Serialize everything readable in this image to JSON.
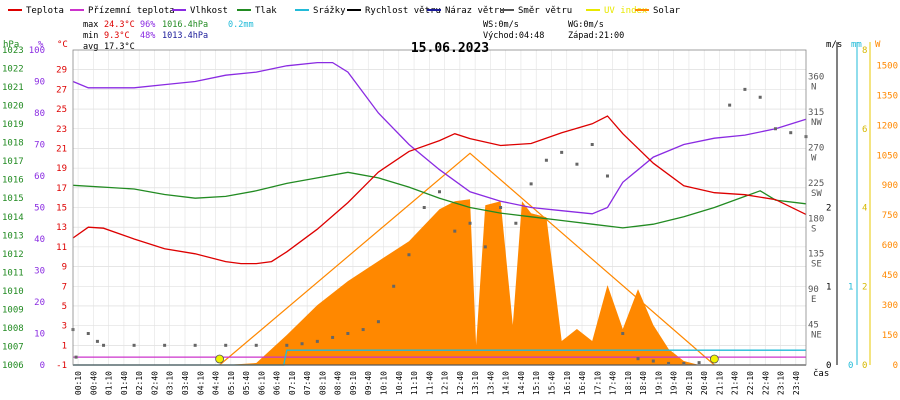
{
  "chart_data": {
    "type": "line",
    "title": "15.06.2023",
    "legend": [
      {
        "label": "Teplota",
        "color": "#dd0000"
      },
      {
        "label": "Přízemní teplota",
        "color": "#cc33cc"
      },
      {
        "label": "Vlhkost",
        "color": "#8a2be2"
      },
      {
        "label": "Tlak",
        "color": "#228b22"
      },
      {
        "label": "Srážky",
        "color": "#22bbd8"
      },
      {
        "label": "Rychlost větru",
        "color": "#000000"
      },
      {
        "label": "Náraz větru",
        "color": "#1a1a99"
      },
      {
        "label": "Směr větru",
        "color": "#555555"
      },
      {
        "label": "UV index",
        "color": "#e8e800"
      },
      {
        "label": "Solar",
        "color": "#ff8800"
      }
    ],
    "stats": {
      "max": {
        "label": "max",
        "temp": "24.3°C",
        "hum": "96%",
        "press": "1016.4hPa",
        "rain": "0.2mm"
      },
      "min": {
        "label": "min",
        "temp": "9.3°C",
        "hum": "48%",
        "press": "1013.4hPa"
      },
      "avg": {
        "label": "avg",
        "temp": "17.3°C"
      },
      "wind": {
        "ws": "WS:0m/s",
        "wg": "WG:0m/s",
        "sunrise": "Východ:04:48",
        "sunset": "Západ:21:00"
      }
    },
    "axes": {
      "hpa_label": "hPa",
      "pct_label": "%",
      "c_label": "°C",
      "ms_label": "m/s",
      "mm_label": "mm",
      "w_label": "W",
      "x_label": "čas",
      "hpa_ticks": [
        "1006",
        "1007",
        "1008",
        "1009",
        "1010",
        "1011",
        "1012",
        "1013",
        "1014",
        "1015",
        "1016",
        "1017",
        "1018",
        "1019",
        "1020",
        "1021",
        "1022",
        "1023"
      ],
      "pct_ticks": [
        "0",
        "10",
        "20",
        "30",
        "40",
        "50",
        "60",
        "70",
        "80",
        "90",
        "100"
      ],
      "c_ticks": [
        "-1",
        "1",
        "3",
        "5",
        "7",
        "9",
        "11",
        "13",
        "15",
        "17",
        "19",
        "21",
        "23",
        "25",
        "27",
        "29"
      ],
      "deg_ticks": [
        {
          "v": "360",
          "d": "N"
        },
        {
          "v": "315",
          "d": "NW"
        },
        {
          "v": "270",
          "d": "W"
        },
        {
          "v": "225",
          "d": "SW"
        },
        {
          "v": "180",
          "d": "S"
        },
        {
          "v": "135",
          "d": "SE"
        },
        {
          "v": "90",
          "d": "E"
        },
        {
          "v": "45",
          "d": "NE"
        }
      ],
      "ms_ticks": [
        {
          "v": "0",
          "y": 0
        },
        {
          "v": "1",
          "y": 1
        },
        {
          "v": "2",
          "y": 2
        }
      ],
      "mm_ticks": [
        {
          "v": "0",
          "y": 0
        },
        {
          "v": "1",
          "y": 1
        }
      ],
      "uv_ticks": [
        "0",
        "2",
        "4",
        "6",
        "8"
      ],
      "w_ticks": [
        "0",
        "150",
        "300",
        "450",
        "600",
        "750",
        "900",
        "1050",
        "1200",
        "1350",
        "1500"
      ],
      "x_ticks": [
        "00:10",
        "00:40",
        "01:10",
        "01:40",
        "02:10",
        "02:40",
        "03:10",
        "03:40",
        "04:10",
        "04:40",
        "05:10",
        "05:40",
        "06:10",
        "06:40",
        "07:10",
        "07:40",
        "08:10",
        "08:40",
        "09:10",
        "09:40",
        "10:10",
        "10:40",
        "11:10",
        "11:40",
        "12:10",
        "12:40",
        "13:10",
        "13:40",
        "14:10",
        "14:40",
        "15:10",
        "15:40",
        "16:10",
        "16:40",
        "17:10",
        "17:40",
        "18:10",
        "18:40",
        "19:10",
        "19:40",
        "20:10",
        "20:40",
        "21:10",
        "21:40",
        "22:10",
        "22:40",
        "23:10",
        "23:40"
      ]
    },
    "series": {
      "temperature_c": [
        [
          0,
          11.9
        ],
        [
          0.5,
          13.0
        ],
        [
          1,
          12.9
        ],
        [
          2,
          11.8
        ],
        [
          3,
          10.8
        ],
        [
          4,
          10.3
        ],
        [
          5,
          9.5
        ],
        [
          5.5,
          9.3
        ],
        [
          6,
          9.3
        ],
        [
          6.5,
          9.5
        ],
        [
          7,
          10.5
        ],
        [
          8,
          12.8
        ],
        [
          9,
          15.5
        ],
        [
          10,
          18.6
        ],
        [
          11,
          20.7
        ],
        [
          12,
          21.8
        ],
        [
          12.5,
          22.5
        ],
        [
          13,
          22.0
        ],
        [
          14,
          21.3
        ],
        [
          15,
          21.5
        ],
        [
          16,
          22.6
        ],
        [
          17,
          23.5
        ],
        [
          17.5,
          24.3
        ],
        [
          18,
          22.5
        ],
        [
          19,
          19.5
        ],
        [
          20,
          17.2
        ],
        [
          21,
          16.5
        ],
        [
          22,
          16.3
        ],
        [
          23,
          15.8
        ],
        [
          24,
          14.3
        ]
      ],
      "humidity_pct": [
        [
          0,
          90
        ],
        [
          0.5,
          88
        ],
        [
          2,
          88
        ],
        [
          3,
          89
        ],
        [
          4,
          90
        ],
        [
          5,
          92
        ],
        [
          6,
          93
        ],
        [
          7,
          95
        ],
        [
          8,
          96
        ],
        [
          8.5,
          96
        ],
        [
          9,
          93
        ],
        [
          10,
          80
        ],
        [
          11,
          70
        ],
        [
          12,
          62
        ],
        [
          13,
          55
        ],
        [
          14,
          52
        ],
        [
          15,
          50
        ],
        [
          16,
          49
        ],
        [
          17,
          48
        ],
        [
          17.5,
          50
        ],
        [
          18,
          58
        ],
        [
          19,
          66
        ],
        [
          20,
          70
        ],
        [
          21,
          72
        ],
        [
          22,
          73
        ],
        [
          23,
          75
        ],
        [
          24,
          78
        ]
      ],
      "pressure_hpa": [
        [
          0,
          1015.7
        ],
        [
          1,
          1015.6
        ],
        [
          2,
          1015.5
        ],
        [
          3,
          1015.2
        ],
        [
          4,
          1015.0
        ],
        [
          5,
          1015.1
        ],
        [
          6,
          1015.4
        ],
        [
          7,
          1015.8
        ],
        [
          8,
          1016.1
        ],
        [
          9,
          1016.4
        ],
        [
          10,
          1016.1
        ],
        [
          11,
          1015.6
        ],
        [
          12,
          1015.0
        ],
        [
          13,
          1014.5
        ],
        [
          14,
          1014.2
        ],
        [
          15,
          1014.0
        ],
        [
          16,
          1013.8
        ],
        [
          17,
          1013.6
        ],
        [
          18,
          1013.4
        ],
        [
          19,
          1013.6
        ],
        [
          20,
          1014.0
        ],
        [
          21,
          1014.5
        ],
        [
          22,
          1015.1
        ],
        [
          22.5,
          1015.4
        ],
        [
          23,
          1014.9
        ],
        [
          24,
          1014.7
        ]
      ],
      "ground_temp_c": [
        [
          0,
          -0.2
        ],
        [
          24,
          -0.2
        ]
      ],
      "rain_mm": [
        [
          0,
          0
        ],
        [
          6.9,
          0
        ],
        [
          7.0,
          0.2
        ],
        [
          24,
          0.2
        ]
      ],
      "wind_speed_ms": [
        [
          0,
          0
        ],
        [
          24,
          0
        ]
      ],
      "solar_w": [
        [
          5,
          0
        ],
        [
          6,
          10
        ],
        [
          7,
          150
        ],
        [
          8,
          300
        ],
        [
          9,
          420
        ],
        [
          10,
          520
        ],
        [
          11,
          620
        ],
        [
          11.5,
          700
        ],
        [
          12,
          780
        ],
        [
          12.5,
          820
        ],
        [
          13,
          830
        ],
        [
          13.2,
          100
        ],
        [
          13.5,
          800
        ],
        [
          14,
          820
        ],
        [
          14.4,
          200
        ],
        [
          14.7,
          820
        ],
        [
          15,
          760
        ],
        [
          15.5,
          740
        ],
        [
          16,
          120
        ],
        [
          16.5,
          180
        ],
        [
          17,
          120
        ],
        [
          17.5,
          400
        ],
        [
          18,
          180
        ],
        [
          18.5,
          380
        ],
        [
          19,
          200
        ],
        [
          19.5,
          80
        ],
        [
          20,
          20
        ],
        [
          20.5,
          0
        ]
      ],
      "solar_theoretical_w": [
        [
          4.8,
          0
        ],
        [
          13,
          1060
        ],
        [
          21,
          0
        ]
      ],
      "wind_dir_deg": [
        [
          0,
          45
        ],
        [
          0.1,
          10
        ],
        [
          0.5,
          40
        ],
        [
          0.8,
          30
        ],
        [
          1,
          25
        ],
        [
          2,
          25
        ],
        [
          3,
          25
        ],
        [
          4,
          25
        ],
        [
          5,
          25
        ],
        [
          6,
          25
        ],
        [
          7,
          25
        ],
        [
          7.5,
          27
        ],
        [
          8,
          30
        ],
        [
          8.5,
          35
        ],
        [
          9,
          40
        ],
        [
          9.5,
          45
        ],
        [
          10,
          55
        ],
        [
          10.5,
          100
        ],
        [
          11,
          140
        ],
        [
          11.5,
          200
        ],
        [
          12,
          220
        ],
        [
          12.5,
          170
        ],
        [
          13,
          180
        ],
        [
          13.5,
          150
        ],
        [
          14,
          200
        ],
        [
          14.5,
          180
        ],
        [
          15,
          230
        ],
        [
          15.5,
          260
        ],
        [
          16,
          270
        ],
        [
          16.5,
          255
        ],
        [
          17,
          280
        ],
        [
          17.5,
          240
        ],
        [
          18,
          40
        ],
        [
          18.5,
          8
        ],
        [
          19,
          5
        ],
        [
          19.5,
          2
        ],
        [
          20,
          2
        ],
        [
          20.5,
          3
        ],
        [
          21,
          8
        ],
        [
          21.5,
          330
        ],
        [
          22,
          350
        ],
        [
          22.5,
          340
        ],
        [
          23,
          300
        ],
        [
          23.5,
          295
        ],
        [
          24,
          290
        ]
      ],
      "uv_index_markers": [
        [
          4.8,
          0
        ],
        [
          21,
          0
        ]
      ]
    }
  }
}
